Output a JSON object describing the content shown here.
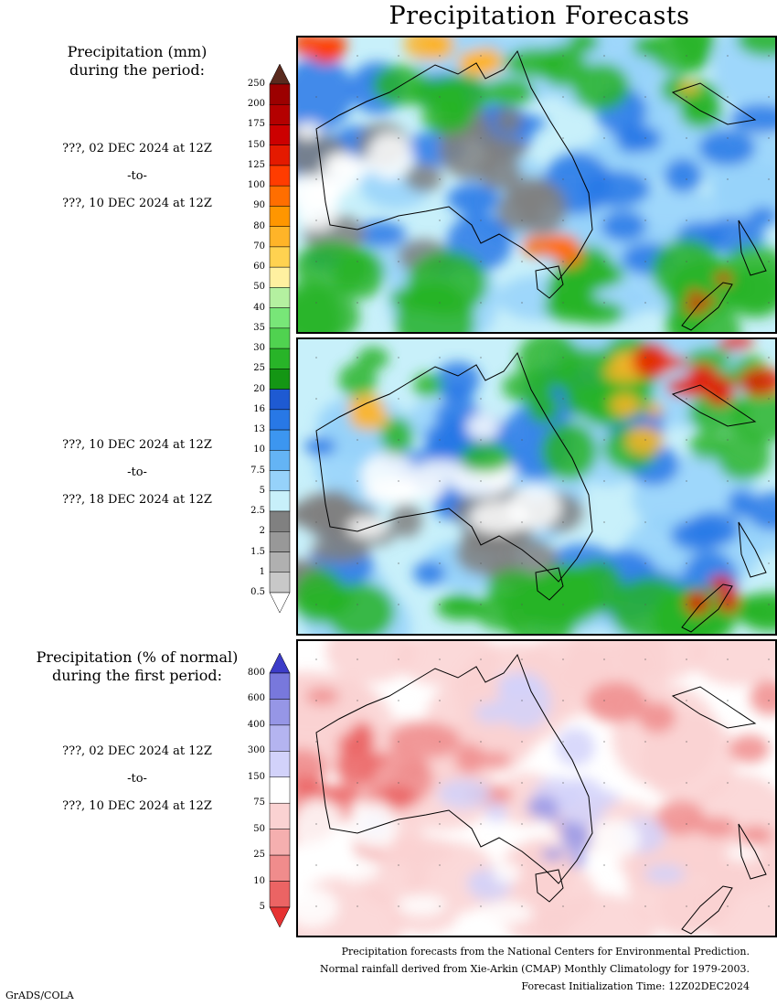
{
  "title": "Precipitation Forecasts",
  "mm_heading": [
    "Precipitation (mm)",
    "during the period:"
  ],
  "pct_heading": [
    "Precipitation (% of normal)",
    "during the first period:"
  ],
  "periods": [
    {
      "start": "???, 02 DEC 2024 at 12Z",
      "sep": "-to-",
      "end": "???, 10 DEC 2024 at 12Z"
    },
    {
      "start": "???, 10 DEC 2024 at 12Z",
      "sep": "-to-",
      "end": "???, 18 DEC 2024 at 12Z"
    },
    {
      "start": "???, 02 DEC 2024 at 12Z",
      "sep": "-to-",
      "end": "???, 10 DEC 2024 at 12Z"
    }
  ],
  "mm_scale": {
    "labels": [
      "250",
      "200",
      "175",
      "150",
      "125",
      "100",
      "90",
      "80",
      "70",
      "60",
      "50",
      "40",
      "35",
      "30",
      "25",
      "20",
      "16",
      "13",
      "10",
      "7.5",
      "5",
      "2.5",
      "2",
      "1.5",
      "1",
      "0.5"
    ],
    "colors": [
      "#5a2a1e",
      "#9c0000",
      "#b40000",
      "#cc0000",
      "#e41a00",
      "#ff3c00",
      "#ff6e00",
      "#ff9600",
      "#ffb428",
      "#ffd250",
      "#fff0a0",
      "#b4f0a0",
      "#78e678",
      "#50d250",
      "#28b428",
      "#149614",
      "#1e5ad2",
      "#2878e6",
      "#3c96f0",
      "#64b4f5",
      "#96d2fa",
      "#c8f0fa",
      "#808080",
      "#989898",
      "#b0b0b0",
      "#c8c8c8",
      "#ffffff"
    ]
  },
  "pct_scale": {
    "labels": [
      "800",
      "600",
      "400",
      "300",
      "150",
      "75",
      "50",
      "25",
      "10",
      "5"
    ],
    "colors": [
      "#3c3cc8",
      "#7878dc",
      "#9696e6",
      "#b4b4f0",
      "#d2d2fa",
      "#ffffff",
      "#fad2d2",
      "#f5afaf",
      "#f08c8c",
      "#eb6464",
      "#e63232"
    ]
  },
  "footer": [
    "Precipitation forecasts from the National Centers for Environmental Prediction.",
    "Normal rainfall derived from Xie-Arkin (CMAP) Monthly Climatology for 1979-2003.",
    "Forecast Initialization Time: 12Z02DEC2024"
  ],
  "credit": "GrADS/COLA"
}
